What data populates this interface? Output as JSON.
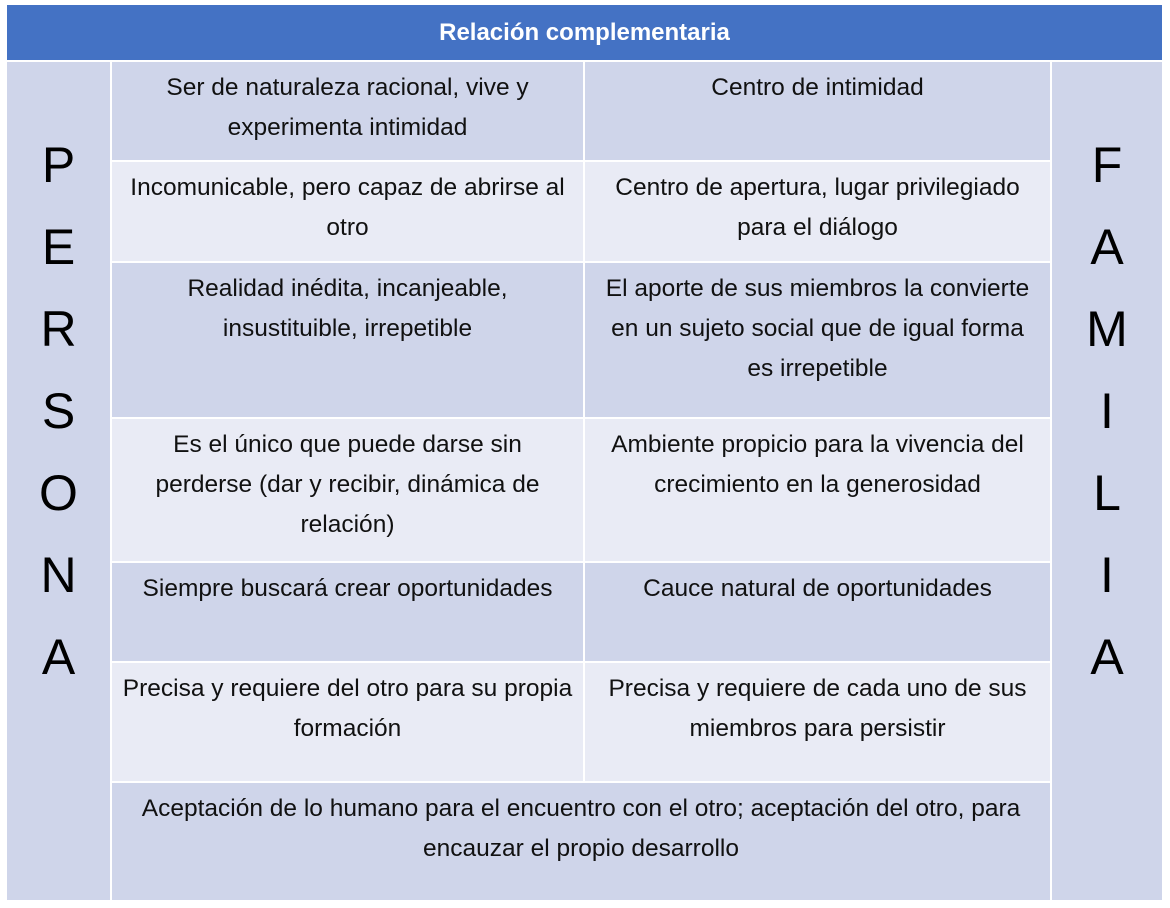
{
  "title": "Relación complementaria",
  "left_label": [
    "P",
    "E",
    "R",
    "S",
    "O",
    "N",
    "A"
  ],
  "right_label": [
    "F",
    "A",
    "M",
    "I",
    "L",
    "I",
    "A"
  ],
  "rows": [
    {
      "persona": "Ser de naturaleza racional, vive y experimenta intimidad",
      "familia": "Centro de intimidad"
    },
    {
      "persona": "Incomunicable, pero capaz de abrirse al otro",
      "familia": "Centro de apertura, lugar privilegiado para el diálogo"
    },
    {
      "persona": "Realidad inédita, incanjeable, insustituible, irrepetible",
      "familia": "El aporte de sus miembros la convierte en un sujeto social que de igual forma es irrepetible"
    },
    {
      "persona": "Es el único que puede darse sin perderse (dar y recibir, dinámica de relación)",
      "familia": "Ambiente propicio para la vivencia del crecimiento en la generosidad"
    },
    {
      "persona": "Siempre buscará crear oportunidades",
      "familia": "Cauce natural de oportunidades"
    },
    {
      "persona": "Precisa y requiere del otro para su propia formación",
      "familia": "Precisa y requiere de cada uno de sus miembros para persistir"
    }
  ],
  "footer": "Aceptación de lo humano para el encuentro con el otro; aceptación del otro, para encauzar el propio desarrollo",
  "colors": {
    "header": "#4472C4",
    "band_dark": "#CFD5EA",
    "band_light": "#E9EBF5"
  }
}
